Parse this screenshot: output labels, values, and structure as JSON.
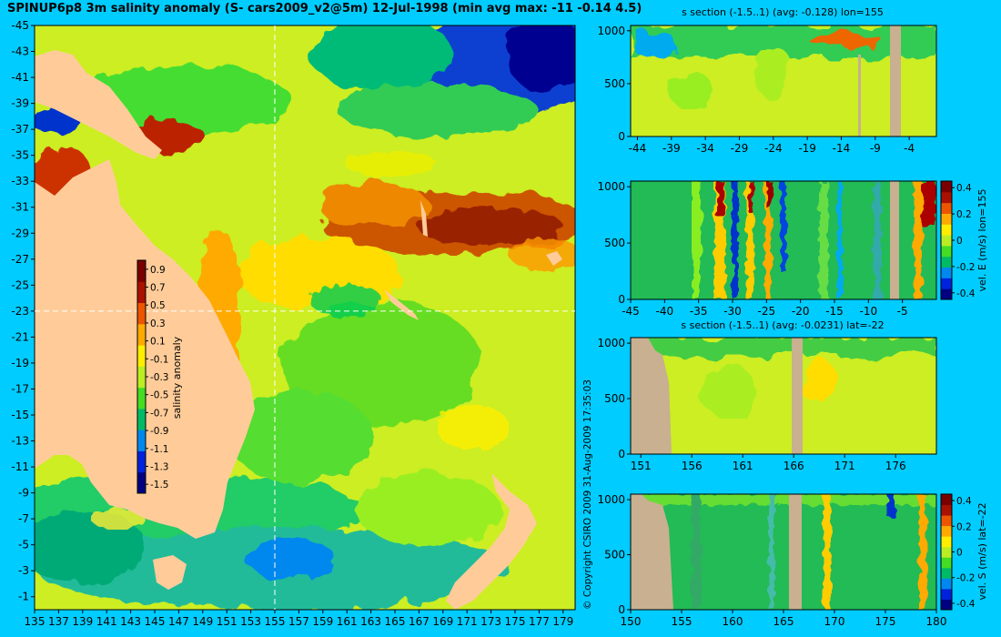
{
  "main_title": "SPINUP6p8 3m salinity anomaly (S- cars2009_v2@5m) 12-Jul-1998 (min avg max: -11 -0.14 4.5)",
  "copyright": "© Copyright CSIRO 2009   31-Aug-2009 17:35:03",
  "colors": {
    "background": "#00ccff",
    "land": "#ffcc99",
    "section_land": "#c8b090",
    "colormap": [
      "#000080",
      "#0022dd",
      "#0088ee",
      "#00bb66",
      "#44dd22",
      "#bbee22",
      "#ffee00",
      "#ffaa00",
      "#ee5500",
      "#aa1100",
      "#7a0000"
    ]
  },
  "chart_data": [
    {
      "type": "heatmap",
      "name": "map",
      "title": "SPINUP6p8 3m salinity anomaly (S- cars2009_v2@5m) 12-Jul-1998 (min avg max: -11 -0.14 4.5)",
      "xlim": [
        135,
        180
      ],
      "ylim": [
        -45,
        0
      ],
      "xticks": [
        "135",
        "137",
        "139",
        "141",
        "143",
        "145",
        "147",
        "149",
        "151",
        "153",
        "155",
        "157",
        "159",
        "161",
        "163",
        "165",
        "167",
        "169",
        "171",
        "173",
        "175",
        "177",
        "179"
      ],
      "yticks": [
        "-1",
        "-3",
        "-5",
        "-7",
        "-9",
        "-11",
        "-13",
        "-15",
        "-17",
        "-19",
        "-21",
        "-23",
        "-25",
        "-27",
        "-29",
        "-31",
        "-33",
        "-35",
        "-37",
        "-39",
        "-41",
        "-43",
        "-45"
      ],
      "crosshair": {
        "lon": 155,
        "lat": -22
      },
      "colorbar": {
        "label": "salinity anomaly",
        "ticks": [
          "0.9",
          "0.7",
          "0.5",
          "0.3",
          "0.1",
          "-0.1",
          "-0.3",
          "-0.5",
          "-0.7",
          "-0.9",
          "-1.1",
          "-1.3",
          "-1.5"
        ],
        "range": [
          -1.6,
          1.0
        ]
      }
    },
    {
      "type": "heatmap",
      "name": "section-s-lon",
      "title": "s section (-1.5..1) (avg: -0.128) lon=155",
      "xlim": [
        -45,
        0
      ],
      "ylim": [
        1050,
        0
      ],
      "xticks": [
        "-44",
        "-39",
        "-34",
        "-29",
        "-24",
        "-19",
        "-14",
        "-9",
        "-4"
      ],
      "yticks": [
        "0",
        "500",
        "1000"
      ]
    },
    {
      "type": "heatmap",
      "name": "section-vel-e",
      "title": "",
      "xlim": [
        -45,
        0
      ],
      "ylim": [
        1050,
        0
      ],
      "xticks": [
        "-45",
        "-40",
        "-35",
        "-30",
        "-25",
        "-20",
        "-15",
        "-10",
        "-5"
      ],
      "yticks": [
        "0",
        "500",
        "1000"
      ],
      "colorbar": {
        "label": "vel. E (m/s) lon=155",
        "ticks": [
          "0.4",
          "0.2",
          "0",
          "-0.2",
          "-0.4"
        ],
        "range": [
          -0.45,
          0.45
        ]
      }
    },
    {
      "type": "heatmap",
      "name": "section-s-lat",
      "title": "s section (-1.5..1) (avg: -0.0231) lat=-22",
      "xlim": [
        150,
        180
      ],
      "ylim": [
        1050,
        0
      ],
      "xticks": [
        "151",
        "156",
        "161",
        "166",
        "171",
        "176"
      ],
      "yticks": [
        "0",
        "500",
        "1000"
      ]
    },
    {
      "type": "heatmap",
      "name": "section-vel-s",
      "title": "",
      "xlim": [
        150,
        180
      ],
      "ylim": [
        1050,
        0
      ],
      "xticks": [
        "150",
        "155",
        "160",
        "165",
        "170",
        "175",
        "180"
      ],
      "yticks": [
        "0",
        "500",
        "1000"
      ],
      "colorbar": {
        "label": "vel. S (m/s) lat=-22",
        "ticks": [
          "0.4",
          "0.2",
          "0",
          "-0.2",
          "-0.4"
        ],
        "range": [
          -0.45,
          0.45
        ]
      }
    }
  ]
}
